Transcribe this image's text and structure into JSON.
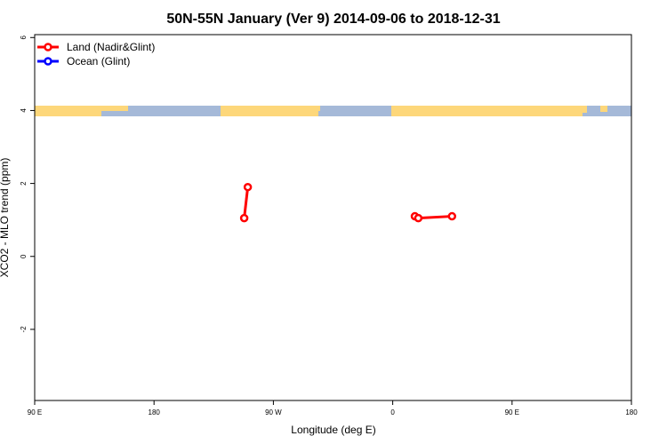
{
  "chart_data": {
    "type": "line",
    "title": "50N-55N January (Ver 9)   2014-09-06 to 2018-12-31",
    "x_label": "Longitude (deg E)",
    "y_label": "XCO2 - MLO trend (ppm)",
    "xlim": [
      90,
      540
    ],
    "xticks": [
      {
        "value": 90,
        "label": "90 E"
      },
      {
        "value": 180,
        "label": "180"
      },
      {
        "value": 270,
        "label": "90 W"
      },
      {
        "value": 360,
        "label": "0"
      },
      {
        "value": 450,
        "label": "90 E"
      },
      {
        "value": 540,
        "label": "180"
      }
    ],
    "ylim": [
      -3.95,
      6.08
    ],
    "yticks": [
      -2,
      0,
      2,
      4,
      6
    ],
    "legend": "top-left",
    "x": [
      248,
      250.7,
      260,
      376.7,
      378,
      379.3,
      404.7
    ],
    "series": [
      {
        "name": "Land (Nadir&Glint)",
        "color": "#ff0000",
        "values": [
          1.05,
          1.9,
          null,
          1.1,
          null,
          1.05,
          1.1
        ]
      },
      {
        "name": "Ocean (Glint)",
        "color": "#0000ff",
        "values": [
          null,
          null,
          null,
          null,
          null,
          null,
          null
        ]
      }
    ]
  }
}
